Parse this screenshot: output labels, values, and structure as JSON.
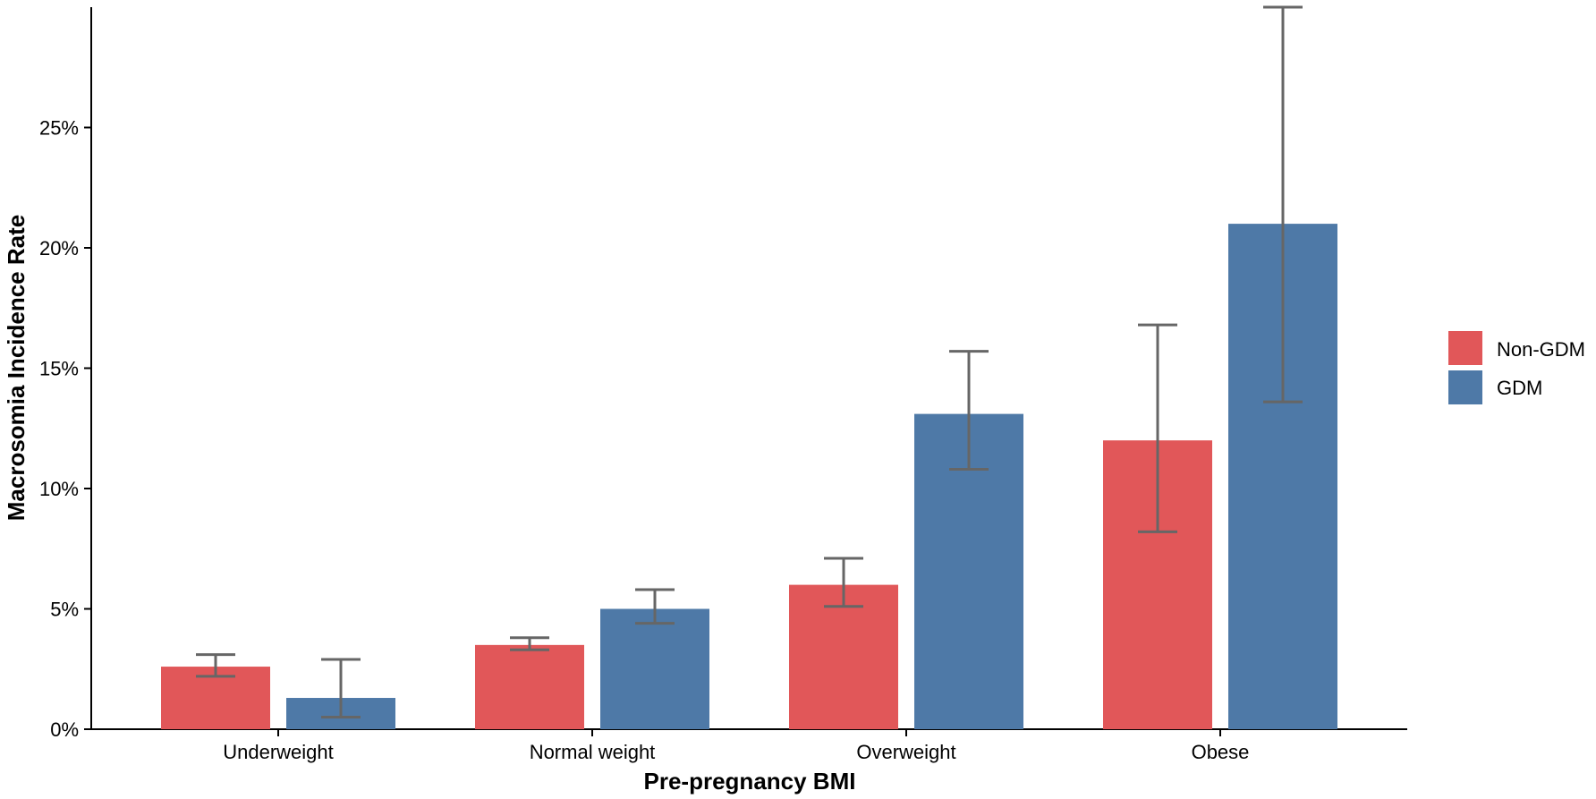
{
  "chart_data": {
    "type": "bar",
    "title": "",
    "xlabel": "Pre-pregnancy BMI",
    "ylabel": "Macrosomia Incidence Rate",
    "categories": [
      "Underweight",
      "Normal weight",
      "Overweight",
      "Obese"
    ],
    "series": [
      {
        "name": "Non-GDM",
        "color": "#E15759",
        "values": [
          2.6,
          3.5,
          6.0,
          12.0
        ],
        "ci_low": [
          2.2,
          3.3,
          5.1,
          8.2
        ],
        "ci_high": [
          3.1,
          3.8,
          7.1,
          16.8
        ]
      },
      {
        "name": "GDM",
        "color": "#4E79A7",
        "values": [
          1.3,
          5.0,
          13.1,
          21.0
        ],
        "ci_low": [
          0.5,
          4.4,
          10.8,
          13.6
        ],
        "ci_high": [
          2.9,
          5.8,
          15.7,
          30.0
        ]
      }
    ],
    "ylim": [
      0,
      30
    ],
    "yticks": [
      0,
      5,
      10,
      15,
      20,
      25
    ],
    "ytick_labels": [
      "0%",
      "5%",
      "10%",
      "15%",
      "20%",
      "25%"
    ],
    "grid": false,
    "legend_position": "right",
    "errorbar_color": "#666666"
  }
}
